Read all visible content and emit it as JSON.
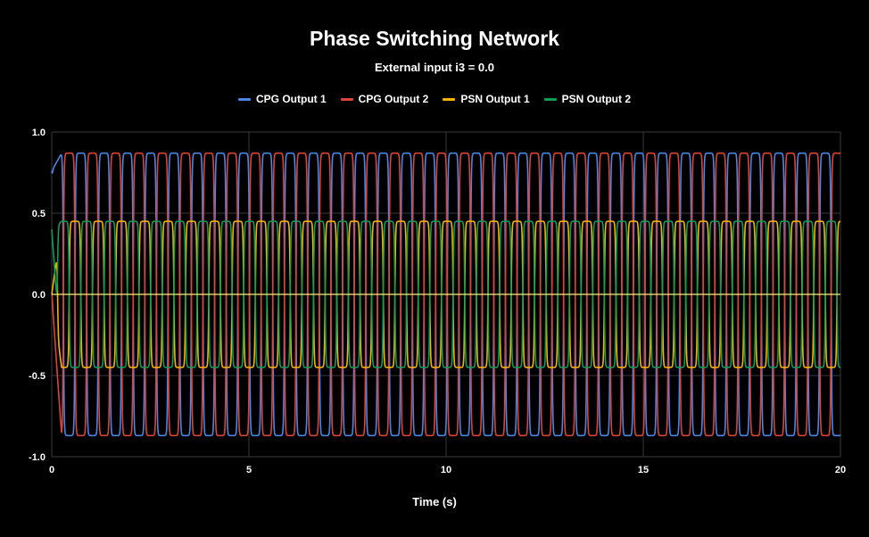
{
  "chart_data": {
    "type": "line",
    "title": "Phase Switching Network",
    "subtitle": "External input i3 = 0.0",
    "xlabel": "Time (s)",
    "ylabel": "",
    "xlim": [
      0,
      20
    ],
    "ylim": [
      -1.0,
      1.0
    ],
    "xticks": [
      "0",
      "5",
      "10",
      "15",
      "20"
    ],
    "yticks": [
      "1.0",
      "0.5",
      "0.0",
      "-0.5",
      "-1.0"
    ],
    "grid": true,
    "legend_position": "top-center",
    "period_s": 0.59,
    "series": [
      {
        "name": "CPG Output 1",
        "color": "#4A86E8",
        "amplitude": 0.87,
        "initial_value": 0.76
      },
      {
        "name": "CPG Output 2",
        "color": "#DB4437",
        "amplitude": 0.87,
        "initial_value": 0.0
      },
      {
        "name": "PSN Output 1",
        "color": "#F4B400",
        "amplitude": 0.45,
        "initial_value": 0.0
      },
      {
        "name": "PSN Output 2",
        "color": "#0F9D58",
        "amplitude": 0.45,
        "initial_value": 0.4
      }
    ],
    "zero_line_color": "#FFF176"
  }
}
